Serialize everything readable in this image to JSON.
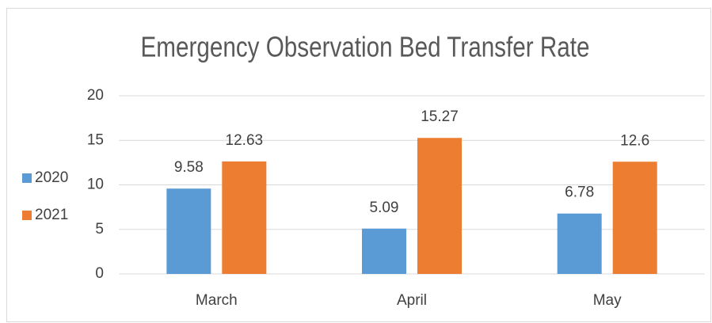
{
  "chart_data": {
    "type": "bar",
    "title": "Emergency Observation Bed Transfer Rate",
    "categories": [
      "March",
      "April",
      "May"
    ],
    "series": [
      {
        "name": "2020",
        "color": "#5b9bd5",
        "values": [
          9.58,
          5.09,
          6.78
        ]
      },
      {
        "name": "2021",
        "color": "#ed7d31",
        "values": [
          12.63,
          15.27,
          12.6
        ]
      }
    ],
    "ylim": [
      0,
      20
    ],
    "yticks": [
      0,
      5,
      10,
      15,
      20
    ],
    "grid": true,
    "legend": "left"
  }
}
